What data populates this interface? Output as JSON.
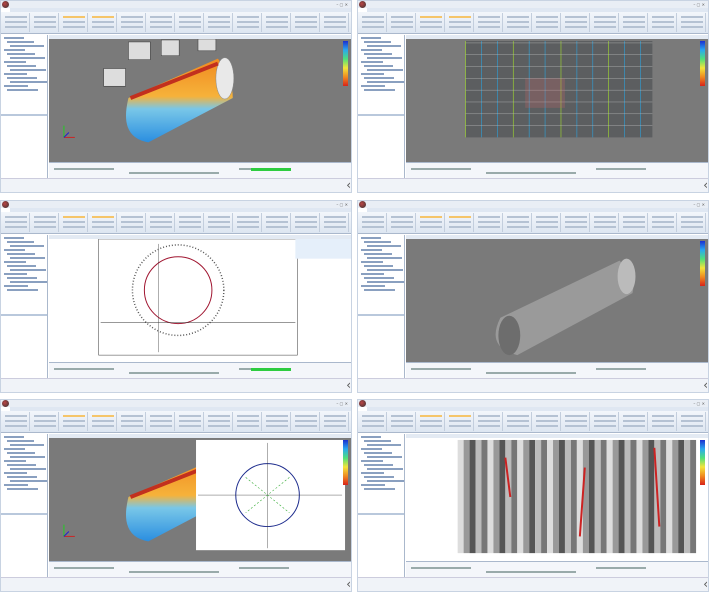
{
  "panels": [
    {
      "view": "tunnel-3d-color",
      "colorbar": true,
      "progress": true
    },
    {
      "view": "tunnel-photo-unrolled",
      "colorbar": true,
      "progress": false
    },
    {
      "view": "section-chart",
      "colorbar": false,
      "progress": true
    },
    {
      "view": "tunnel-3d-gray",
      "colorbar": true,
      "progress": false
    },
    {
      "view": "tunnel-3d-and-chart",
      "colorbar": true,
      "progress": false
    },
    {
      "view": "tunnel-grayscale-unrolled",
      "colorbar": true,
      "progress": false
    }
  ],
  "window_controls": "– ▢ ✕",
  "arrow_icon": "‹",
  "colors": {
    "viewport": "#7a7a7a",
    "progress": "#2ecc40",
    "ribbon": "#dde6f1",
    "accent": "#f5c56a"
  }
}
